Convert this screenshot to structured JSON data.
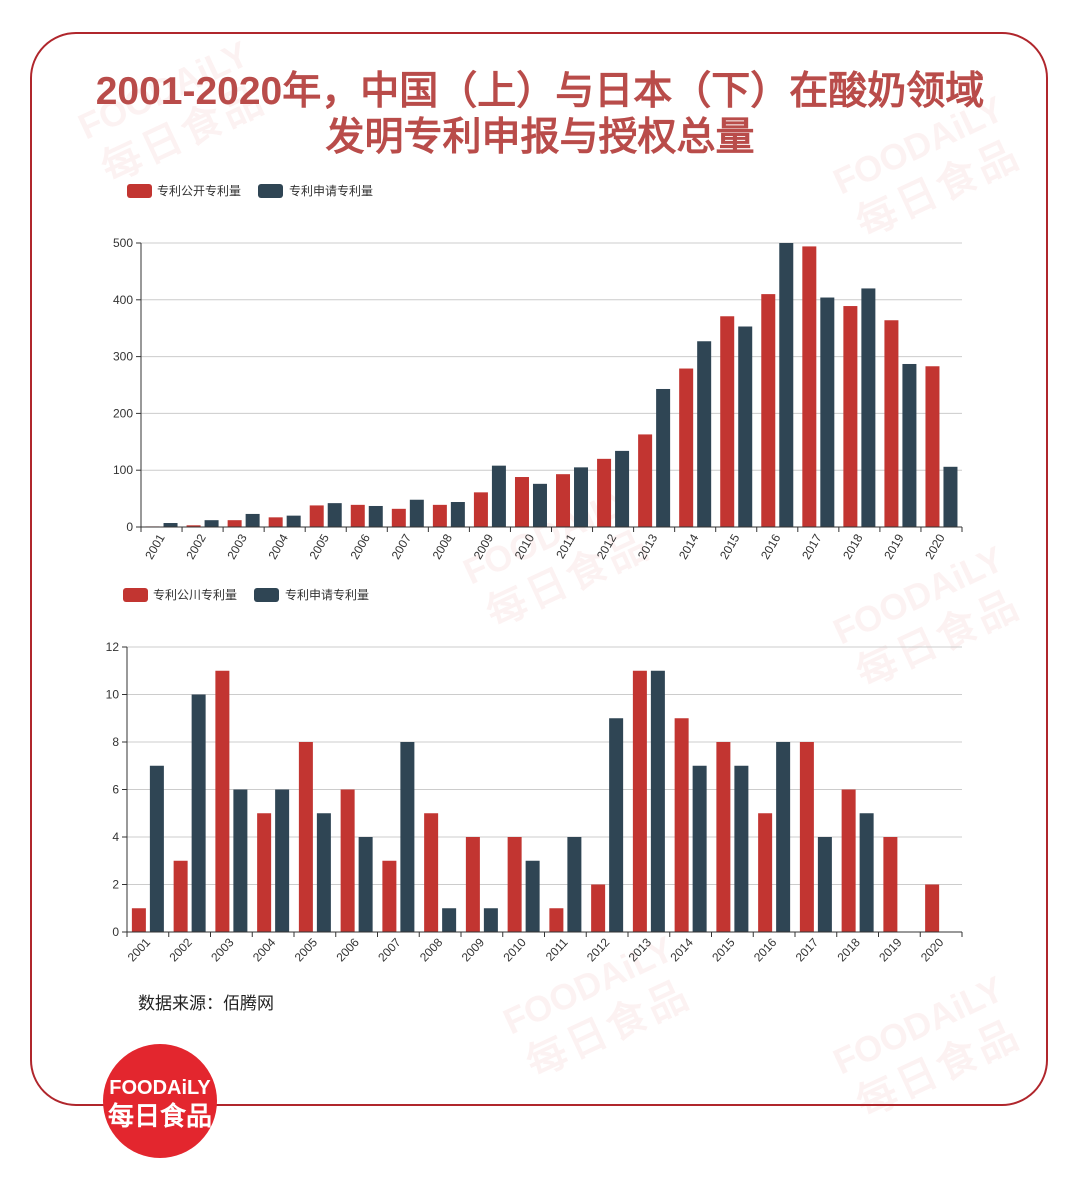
{
  "title": {
    "line1": "2001-2020年，中国（上）与日本（下）在酸奶领域",
    "line2": "发明专利申报与授权总量"
  },
  "source": "数据来源：佰腾网",
  "logo": {
    "brand": "FOODAiLY",
    "cn": "每日食品"
  },
  "watermark": {
    "brand": "FOODAiLY",
    "cn": "每日食品"
  },
  "colors": {
    "title": "#b94c4a",
    "frame": "#b0262c",
    "logo": "#e3262e",
    "series_published": "#c23531",
    "series_applied": "#2f4554",
    "axis": "#333333",
    "grid": "#cccccc",
    "label": "#333333"
  },
  "chart_data": [
    {
      "type": "bar",
      "categories": [
        "2001",
        "2002",
        "2003",
        "2004",
        "2005",
        "2006",
        "2007",
        "2008",
        "2009",
        "2010",
        "2011",
        "2012",
        "2013",
        "2014",
        "2015",
        "2016",
        "2017",
        "2018",
        "2019",
        "2020"
      ],
      "series": [
        {
          "name": "专利公开专利量",
          "values": [
            1,
            3,
            12,
            17,
            38,
            39,
            32,
            39,
            61,
            88,
            93,
            120,
            163,
            279,
            371,
            410,
            494,
            389,
            364,
            283
          ]
        },
        {
          "name": "专利申请专利量",
          "values": [
            7,
            12,
            23,
            20,
            42,
            37,
            48,
            44,
            108,
            76,
            105,
            134,
            243,
            327,
            353,
            500,
            404,
            420,
            287,
            106
          ]
        }
      ],
      "xlabel": "",
      "ylabel": "",
      "ylim": [
        0,
        500
      ],
      "yticks": [
        0,
        100,
        200,
        300,
        400,
        500
      ],
      "legend": "top-left",
      "grid": true
    },
    {
      "type": "bar",
      "categories": [
        "2001",
        "2002",
        "2003",
        "2004",
        "2005",
        "2006",
        "2007",
        "2008",
        "2009",
        "2010",
        "2011",
        "2012",
        "2013",
        "2014",
        "2015",
        "2016",
        "2017",
        "2018",
        "2019",
        "2020"
      ],
      "series": [
        {
          "name": "专利公川专利量",
          "values": [
            1,
            3,
            11,
            5,
            8,
            6,
            3,
            5,
            4,
            4,
            1,
            2,
            11,
            9,
            8,
            5,
            8,
            6,
            4,
            2
          ]
        },
        {
          "name": "专利申请专利量",
          "values": [
            7,
            10,
            6,
            6,
            5,
            4,
            8,
            1,
            1,
            3,
            4,
            9,
            11,
            7,
            7,
            8,
            4,
            5,
            0,
            0
          ]
        }
      ],
      "xlabel": "",
      "ylabel": "",
      "ylim": [
        0,
        12
      ],
      "yticks": [
        0,
        2,
        4,
        6,
        8,
        10,
        12
      ],
      "legend": "top-left",
      "grid": true
    }
  ]
}
